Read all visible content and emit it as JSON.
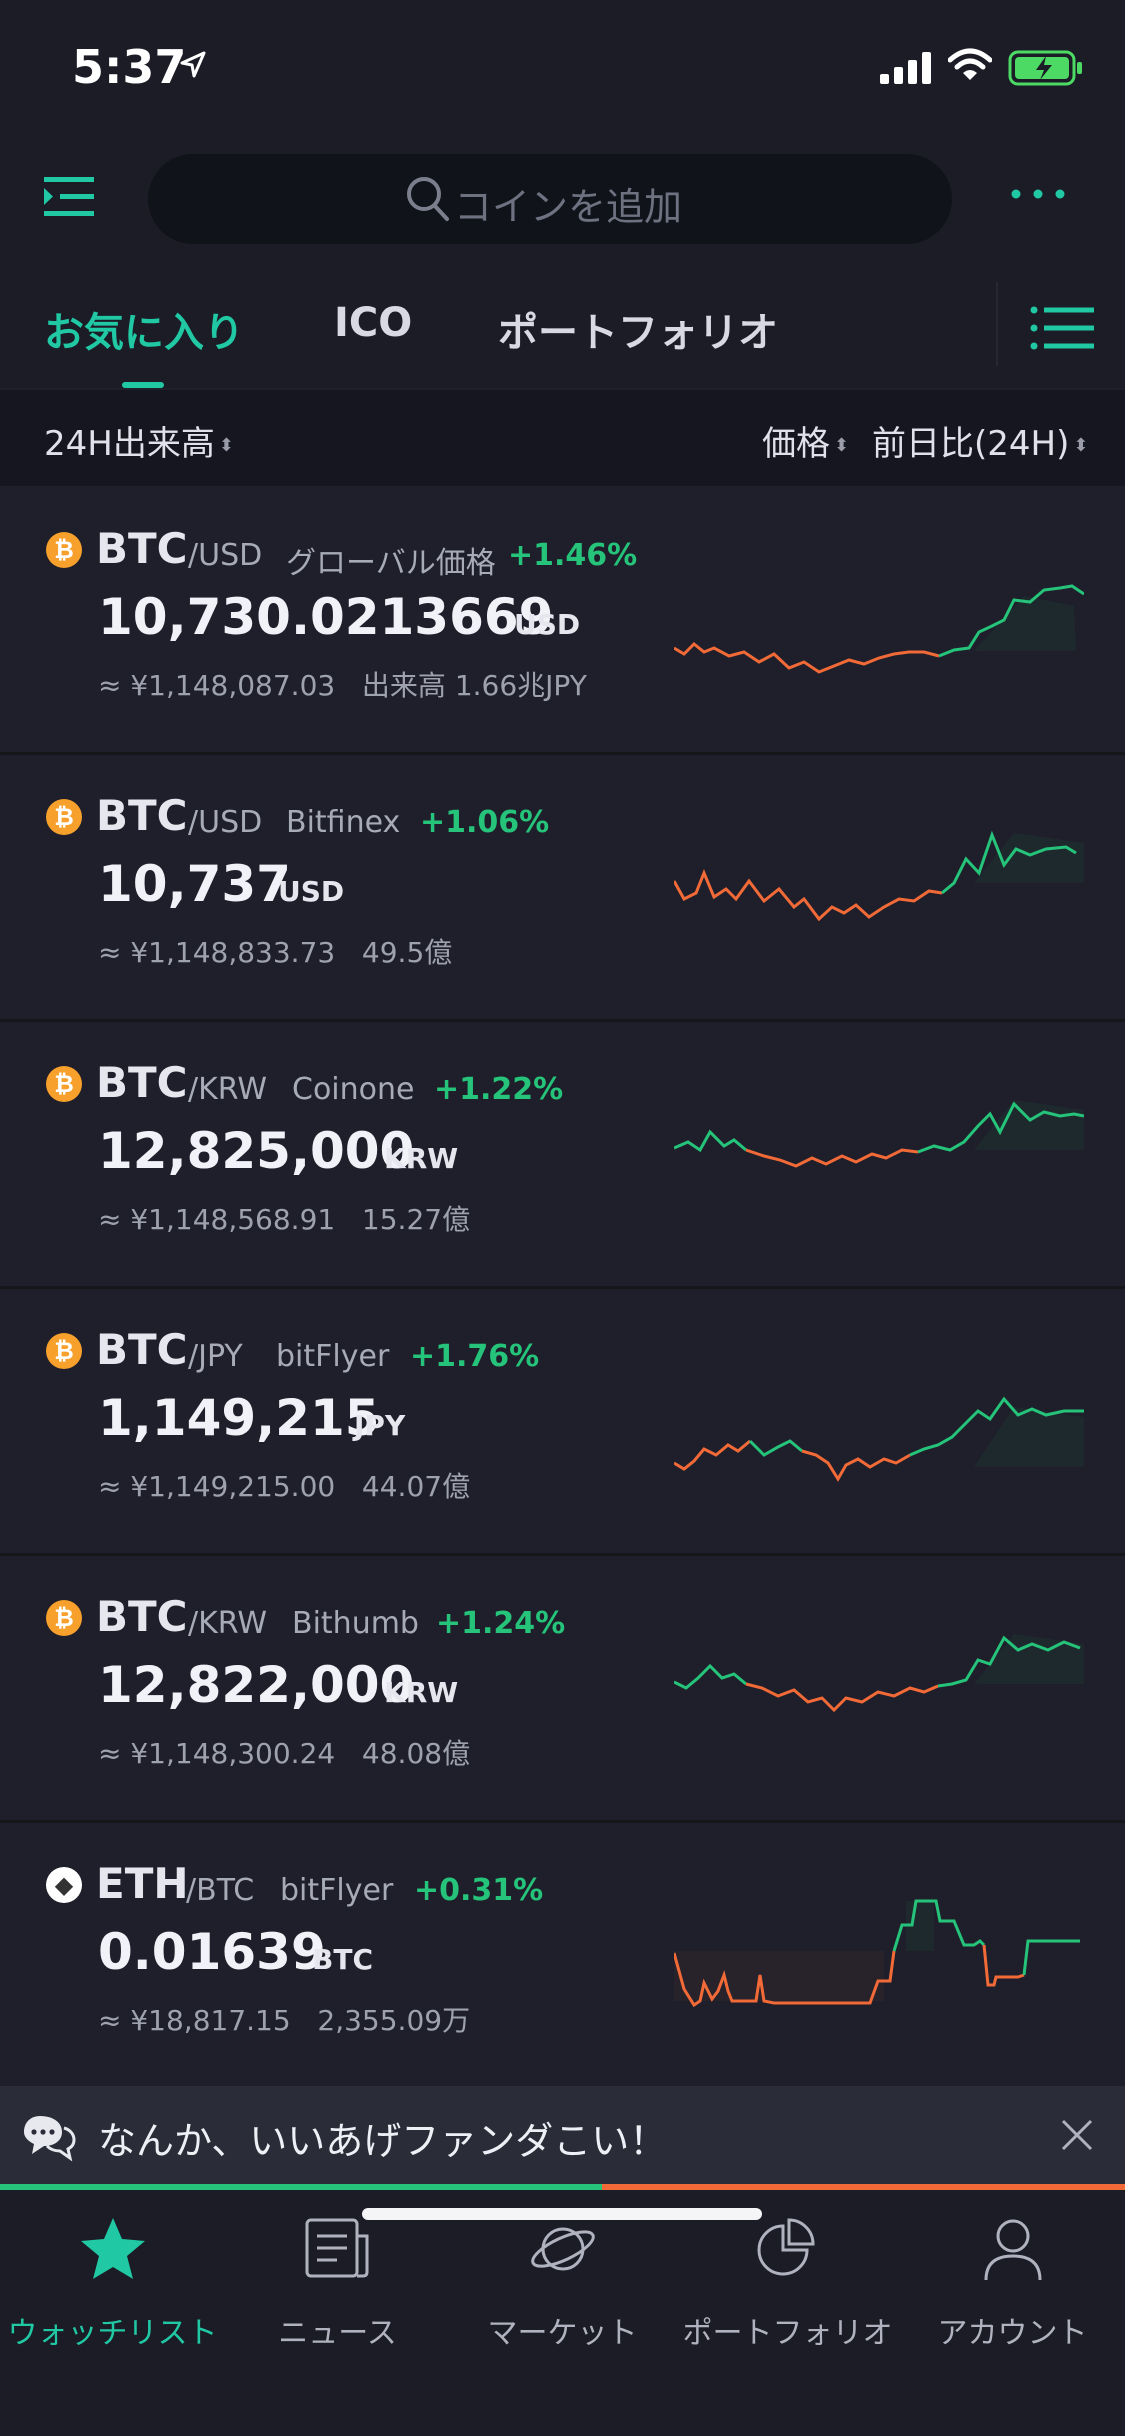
{
  "status": {
    "time": "5:37"
  },
  "search": {
    "placeholder": "コインを追加"
  },
  "tabs": [
    {
      "label": "お気に入り",
      "active": true
    },
    {
      "label": "ICO",
      "active": false
    },
    {
      "label": "ポートフォリオ",
      "active": false
    }
  ],
  "sort": {
    "volume": "24H出来高",
    "price": "価格",
    "change": "前日比(24H)"
  },
  "rows": [
    {
      "icon": "bitcoin-icon",
      "symbol": "BTC",
      "pair": "/USD",
      "exchange": "グローバル価格",
      "change": "+1.46%",
      "price": "10,730.0213669",
      "unit": "USD",
      "jpy": "≈ ¥1,148,087.03",
      "volume": "出来高 1.66兆JPY"
    },
    {
      "icon": "bitcoin-icon",
      "symbol": "BTC",
      "pair": "/USD",
      "exchange": "Bitfinex",
      "change": "+1.06%",
      "price": "10,737",
      "unit": "USD",
      "jpy": "≈ ¥1,148,833.73",
      "volume": "49.5億"
    },
    {
      "icon": "bitcoin-icon",
      "symbol": "BTC",
      "pair": "/KRW",
      "exchange": "Coinone",
      "change": "+1.22%",
      "price": "12,825,000",
      "unit": "KRW",
      "jpy": "≈ ¥1,148,568.91",
      "volume": "15.27億"
    },
    {
      "icon": "bitcoin-icon",
      "symbol": "BTC",
      "pair": "/JPY",
      "exchange": "bitFlyer",
      "change": "+1.76%",
      "price": "1,149,215",
      "unit": "JPY",
      "jpy": "≈ ¥1,149,215.00",
      "volume": "44.07億"
    },
    {
      "icon": "bitcoin-icon",
      "symbol": "BTC",
      "pair": "/KRW",
      "exchange": "Bithumb",
      "change": "+1.24%",
      "price": "12,822,000",
      "unit": "KRW",
      "jpy": "≈ ¥1,148,300.24",
      "volume": "48.08億"
    },
    {
      "icon": "ethereum-icon",
      "symbol": "ETH",
      "pair": "/BTC",
      "exchange": "bitFlyer",
      "change": "+0.31%",
      "price": "0.01639",
      "unit": "BTC",
      "jpy": "≈ ¥18,817.15",
      "volume": "2,355.09万"
    }
  ],
  "banner": {
    "text": "なんか、いいあげファンダこい！",
    "progress": 0.535
  },
  "tabbar": [
    {
      "label": "ウォッチリスト",
      "icon": "star-icon",
      "active": true
    },
    {
      "label": "ニュース",
      "icon": "news-icon",
      "active": false
    },
    {
      "label": "マーケット",
      "icon": "planet-icon",
      "active": false
    },
    {
      "label": "ポートフォリオ",
      "icon": "pie-chart-icon",
      "active": false
    },
    {
      "label": "アカウント",
      "icon": "person-icon",
      "active": false
    }
  ],
  "colors": {
    "accent": "#21c8a4",
    "up": "#25c47a",
    "down": "#f26a37",
    "background": "#1e1f2a"
  }
}
